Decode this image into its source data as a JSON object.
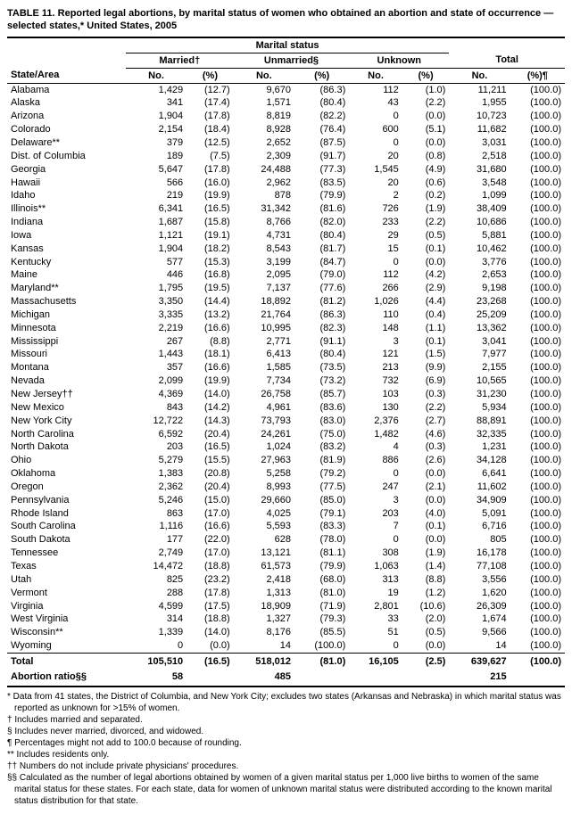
{
  "title": "TABLE 11. Reported legal abortions, by marital status of women who obtained an abortion and state of occurrence — selected states,* United States, 2005",
  "header": {
    "super": "Marital status",
    "groups": [
      "Married†",
      "Unmarried§",
      "Unknown",
      "Total"
    ],
    "state_col": "State/Area",
    "sub_cols": [
      "No.",
      "(%)",
      "No.",
      "(%)",
      "No.",
      "(%)",
      "No.",
      "(%)¶"
    ]
  },
  "rows": [
    {
      "state": "Alabama",
      "m_no": "1,429",
      "m_pct": "(12.7)",
      "u_no": "9,670",
      "u_pct": "(86.3)",
      "k_no": "112",
      "k_pct": "(1.0)",
      "t_no": "11,211",
      "t_pct": "(100.0)"
    },
    {
      "state": "Alaska",
      "m_no": "341",
      "m_pct": "(17.4)",
      "u_no": "1,571",
      "u_pct": "(80.4)",
      "k_no": "43",
      "k_pct": "(2.2)",
      "t_no": "1,955",
      "t_pct": "(100.0)"
    },
    {
      "state": "Arizona",
      "m_no": "1,904",
      "m_pct": "(17.8)",
      "u_no": "8,819",
      "u_pct": "(82.2)",
      "k_no": "0",
      "k_pct": "(0.0)",
      "t_no": "10,723",
      "t_pct": "(100.0)"
    },
    {
      "state": "Colorado",
      "m_no": "2,154",
      "m_pct": "(18.4)",
      "u_no": "8,928",
      "u_pct": "(76.4)",
      "k_no": "600",
      "k_pct": "(5.1)",
      "t_no": "11,682",
      "t_pct": "(100.0)"
    },
    {
      "state": "Delaware**",
      "m_no": "379",
      "m_pct": "(12.5)",
      "u_no": "2,652",
      "u_pct": "(87.5)",
      "k_no": "0",
      "k_pct": "(0.0)",
      "t_no": "3,031",
      "t_pct": "(100.0)"
    },
    {
      "state": "Dist. of Columbia",
      "m_no": "189",
      "m_pct": "(7.5)",
      "u_no": "2,309",
      "u_pct": "(91.7)",
      "k_no": "20",
      "k_pct": "(0.8)",
      "t_no": "2,518",
      "t_pct": "(100.0)"
    },
    {
      "state": "Georgia",
      "m_no": "5,647",
      "m_pct": "(17.8)",
      "u_no": "24,488",
      "u_pct": "(77.3)",
      "k_no": "1,545",
      "k_pct": "(4.9)",
      "t_no": "31,680",
      "t_pct": "(100.0)"
    },
    {
      "state": "Hawaii",
      "m_no": "566",
      "m_pct": "(16.0)",
      "u_no": "2,962",
      "u_pct": "(83.5)",
      "k_no": "20",
      "k_pct": "(0.6)",
      "t_no": "3,548",
      "t_pct": "(100.0)"
    },
    {
      "state": "Idaho",
      "m_no": "219",
      "m_pct": "(19.9)",
      "u_no": "878",
      "u_pct": "(79.9)",
      "k_no": "2",
      "k_pct": "(0.2)",
      "t_no": "1,099",
      "t_pct": "(100.0)"
    },
    {
      "state": "Illinois**",
      "m_no": "6,341",
      "m_pct": "(16.5)",
      "u_no": "31,342",
      "u_pct": "(81.6)",
      "k_no": "726",
      "k_pct": "(1.9)",
      "t_no": "38,409",
      "t_pct": "(100.0)"
    },
    {
      "state": "Indiana",
      "m_no": "1,687",
      "m_pct": "(15.8)",
      "u_no": "8,766",
      "u_pct": "(82.0)",
      "k_no": "233",
      "k_pct": "(2.2)",
      "t_no": "10,686",
      "t_pct": "(100.0)"
    },
    {
      "state": "Iowa",
      "m_no": "1,121",
      "m_pct": "(19.1)",
      "u_no": "4,731",
      "u_pct": "(80.4)",
      "k_no": "29",
      "k_pct": "(0.5)",
      "t_no": "5,881",
      "t_pct": "(100.0)"
    },
    {
      "state": "Kansas",
      "m_no": "1,904",
      "m_pct": "(18.2)",
      "u_no": "8,543",
      "u_pct": "(81.7)",
      "k_no": "15",
      "k_pct": "(0.1)",
      "t_no": "10,462",
      "t_pct": "(100.0)"
    },
    {
      "state": "Kentucky",
      "m_no": "577",
      "m_pct": "(15.3)",
      "u_no": "3,199",
      "u_pct": "(84.7)",
      "k_no": "0",
      "k_pct": "(0.0)",
      "t_no": "3,776",
      "t_pct": "(100.0)"
    },
    {
      "state": "Maine",
      "m_no": "446",
      "m_pct": "(16.8)",
      "u_no": "2,095",
      "u_pct": "(79.0)",
      "k_no": "112",
      "k_pct": "(4.2)",
      "t_no": "2,653",
      "t_pct": "(100.0)"
    },
    {
      "state": "Maryland**",
      "m_no": "1,795",
      "m_pct": "(19.5)",
      "u_no": "7,137",
      "u_pct": "(77.6)",
      "k_no": "266",
      "k_pct": "(2.9)",
      "t_no": "9,198",
      "t_pct": "(100.0)"
    },
    {
      "state": "Massachusetts",
      "m_no": "3,350",
      "m_pct": "(14.4)",
      "u_no": "18,892",
      "u_pct": "(81.2)",
      "k_no": "1,026",
      "k_pct": "(4.4)",
      "t_no": "23,268",
      "t_pct": "(100.0)"
    },
    {
      "state": "Michigan",
      "m_no": "3,335",
      "m_pct": "(13.2)",
      "u_no": "21,764",
      "u_pct": "(86.3)",
      "k_no": "110",
      "k_pct": "(0.4)",
      "t_no": "25,209",
      "t_pct": "(100.0)"
    },
    {
      "state": "Minnesota",
      "m_no": "2,219",
      "m_pct": "(16.6)",
      "u_no": "10,995",
      "u_pct": "(82.3)",
      "k_no": "148",
      "k_pct": "(1.1)",
      "t_no": "13,362",
      "t_pct": "(100.0)"
    },
    {
      "state": "Mississippi",
      "m_no": "267",
      "m_pct": "(8.8)",
      "u_no": "2,771",
      "u_pct": "(91.1)",
      "k_no": "3",
      "k_pct": "(0.1)",
      "t_no": "3,041",
      "t_pct": "(100.0)"
    },
    {
      "state": "Missouri",
      "m_no": "1,443",
      "m_pct": "(18.1)",
      "u_no": "6,413",
      "u_pct": "(80.4)",
      "k_no": "121",
      "k_pct": "(1.5)",
      "t_no": "7,977",
      "t_pct": "(100.0)"
    },
    {
      "state": "Montana",
      "m_no": "357",
      "m_pct": "(16.6)",
      "u_no": "1,585",
      "u_pct": "(73.5)",
      "k_no": "213",
      "k_pct": "(9.9)",
      "t_no": "2,155",
      "t_pct": "(100.0)"
    },
    {
      "state": "Nevada",
      "m_no": "2,099",
      "m_pct": "(19.9)",
      "u_no": "7,734",
      "u_pct": "(73.2)",
      "k_no": "732",
      "k_pct": "(6.9)",
      "t_no": "10,565",
      "t_pct": "(100.0)"
    },
    {
      "state": "New Jersey††",
      "m_no": "4,369",
      "m_pct": "(14.0)",
      "u_no": "26,758",
      "u_pct": "(85.7)",
      "k_no": "103",
      "k_pct": "(0.3)",
      "t_no": "31,230",
      "t_pct": "(100.0)"
    },
    {
      "state": "New Mexico",
      "m_no": "843",
      "m_pct": "(14.2)",
      "u_no": "4,961",
      "u_pct": "(83.6)",
      "k_no": "130",
      "k_pct": "(2.2)",
      "t_no": "5,934",
      "t_pct": "(100.0)"
    },
    {
      "state": "New York City",
      "m_no": "12,722",
      "m_pct": "(14.3)",
      "u_no": "73,793",
      "u_pct": "(83.0)",
      "k_no": "2,376",
      "k_pct": "(2.7)",
      "t_no": "88,891",
      "t_pct": "(100.0)"
    },
    {
      "state": "North Carolina",
      "m_no": "6,592",
      "m_pct": "(20.4)",
      "u_no": "24,261",
      "u_pct": "(75.0)",
      "k_no": "1,482",
      "k_pct": "(4.6)",
      "t_no": "32,335",
      "t_pct": "(100.0)"
    },
    {
      "state": "North Dakota",
      "m_no": "203",
      "m_pct": "(16.5)",
      "u_no": "1,024",
      "u_pct": "(83.2)",
      "k_no": "4",
      "k_pct": "(0.3)",
      "t_no": "1,231",
      "t_pct": "(100.0)"
    },
    {
      "state": "Ohio",
      "m_no": "5,279",
      "m_pct": "(15.5)",
      "u_no": "27,963",
      "u_pct": "(81.9)",
      "k_no": "886",
      "k_pct": "(2.6)",
      "t_no": "34,128",
      "t_pct": "(100.0)"
    },
    {
      "state": "Oklahoma",
      "m_no": "1,383",
      "m_pct": "(20.8)",
      "u_no": "5,258",
      "u_pct": "(79.2)",
      "k_no": "0",
      "k_pct": "(0.0)",
      "t_no": "6,641",
      "t_pct": "(100.0)"
    },
    {
      "state": "Oregon",
      "m_no": "2,362",
      "m_pct": "(20.4)",
      "u_no": "8,993",
      "u_pct": "(77.5)",
      "k_no": "247",
      "k_pct": "(2.1)",
      "t_no": "11,602",
      "t_pct": "(100.0)"
    },
    {
      "state": "Pennsylvania",
      "m_no": "5,246",
      "m_pct": "(15.0)",
      "u_no": "29,660",
      "u_pct": "(85.0)",
      "k_no": "3",
      "k_pct": "(0.0)",
      "t_no": "34,909",
      "t_pct": "(100.0)"
    },
    {
      "state": "Rhode Island",
      "m_no": "863",
      "m_pct": "(17.0)",
      "u_no": "4,025",
      "u_pct": "(79.1)",
      "k_no": "203",
      "k_pct": "(4.0)",
      "t_no": "5,091",
      "t_pct": "(100.0)"
    },
    {
      "state": "South Carolina",
      "m_no": "1,116",
      "m_pct": "(16.6)",
      "u_no": "5,593",
      "u_pct": "(83.3)",
      "k_no": "7",
      "k_pct": "(0.1)",
      "t_no": "6,716",
      "t_pct": "(100.0)"
    },
    {
      "state": "South Dakota",
      "m_no": "177",
      "m_pct": "(22.0)",
      "u_no": "628",
      "u_pct": "(78.0)",
      "k_no": "0",
      "k_pct": "(0.0)",
      "t_no": "805",
      "t_pct": "(100.0)"
    },
    {
      "state": "Tennessee",
      "m_no": "2,749",
      "m_pct": "(17.0)",
      "u_no": "13,121",
      "u_pct": "(81.1)",
      "k_no": "308",
      "k_pct": "(1.9)",
      "t_no": "16,178",
      "t_pct": "(100.0)"
    },
    {
      "state": "Texas",
      "m_no": "14,472",
      "m_pct": "(18.8)",
      "u_no": "61,573",
      "u_pct": "(79.9)",
      "k_no": "1,063",
      "k_pct": "(1.4)",
      "t_no": "77,108",
      "t_pct": "(100.0)"
    },
    {
      "state": "Utah",
      "m_no": "825",
      "m_pct": "(23.2)",
      "u_no": "2,418",
      "u_pct": "(68.0)",
      "k_no": "313",
      "k_pct": "(8.8)",
      "t_no": "3,556",
      "t_pct": "(100.0)"
    },
    {
      "state": "Vermont",
      "m_no": "288",
      "m_pct": "(17.8)",
      "u_no": "1,313",
      "u_pct": "(81.0)",
      "k_no": "19",
      "k_pct": "(1.2)",
      "t_no": "1,620",
      "t_pct": "(100.0)"
    },
    {
      "state": "Virginia",
      "m_no": "4,599",
      "m_pct": "(17.5)",
      "u_no": "18,909",
      "u_pct": "(71.9)",
      "k_no": "2,801",
      "k_pct": "(10.6)",
      "t_no": "26,309",
      "t_pct": "(100.0)"
    },
    {
      "state": "West Virginia",
      "m_no": "314",
      "m_pct": "(18.8)",
      "u_no": "1,327",
      "u_pct": "(79.3)",
      "k_no": "33",
      "k_pct": "(2.0)",
      "t_no": "1,674",
      "t_pct": "(100.0)"
    },
    {
      "state": "Wisconsin**",
      "m_no": "1,339",
      "m_pct": "(14.0)",
      "u_no": "8,176",
      "u_pct": "(85.5)",
      "k_no": "51",
      "k_pct": "(0.5)",
      "t_no": "9,566",
      "t_pct": "(100.0)"
    },
    {
      "state": "Wyoming",
      "m_no": "0",
      "m_pct": "(0.0)",
      "u_no": "14",
      "u_pct": "(100.0)",
      "k_no": "0",
      "k_pct": "(0.0)",
      "t_no": "14",
      "t_pct": "(100.0)"
    }
  ],
  "total": {
    "state": "Total",
    "m_no": "105,510",
    "m_pct": "(16.5)",
    "u_no": "518,012",
    "u_pct": "(81.0)",
    "k_no": "16,105",
    "k_pct": "(2.5)",
    "t_no": "639,627",
    "t_pct": "(100.0)"
  },
  "ratio": {
    "state": "Abortion ratio§§",
    "m_no": "58",
    "m_pct": "",
    "u_no": "485",
    "u_pct": "",
    "k_no": "",
    "k_pct": "",
    "t_no": "215",
    "t_pct": ""
  },
  "footnotes": [
    "* Data from 41 states, the District of Columbia, and New York City; excludes two states (Arkansas and Nebraska) in which marital status was reported as unknown for >15% of women.",
    "† Includes married and separated.",
    "§ Includes never married, divorced, and widowed.",
    "¶ Percentages might not add to 100.0 because of rounding.",
    "** Includes residents only.",
    "†† Numbers do not include private physicians' procedures.",
    "§§ Calculated as the number of legal abortions obtained by women of a given marital status per 1,000 live births to women of the same marital status for these states. For each state, data for women of unknown marital status were distributed according to the known marital status distribution for that state."
  ]
}
